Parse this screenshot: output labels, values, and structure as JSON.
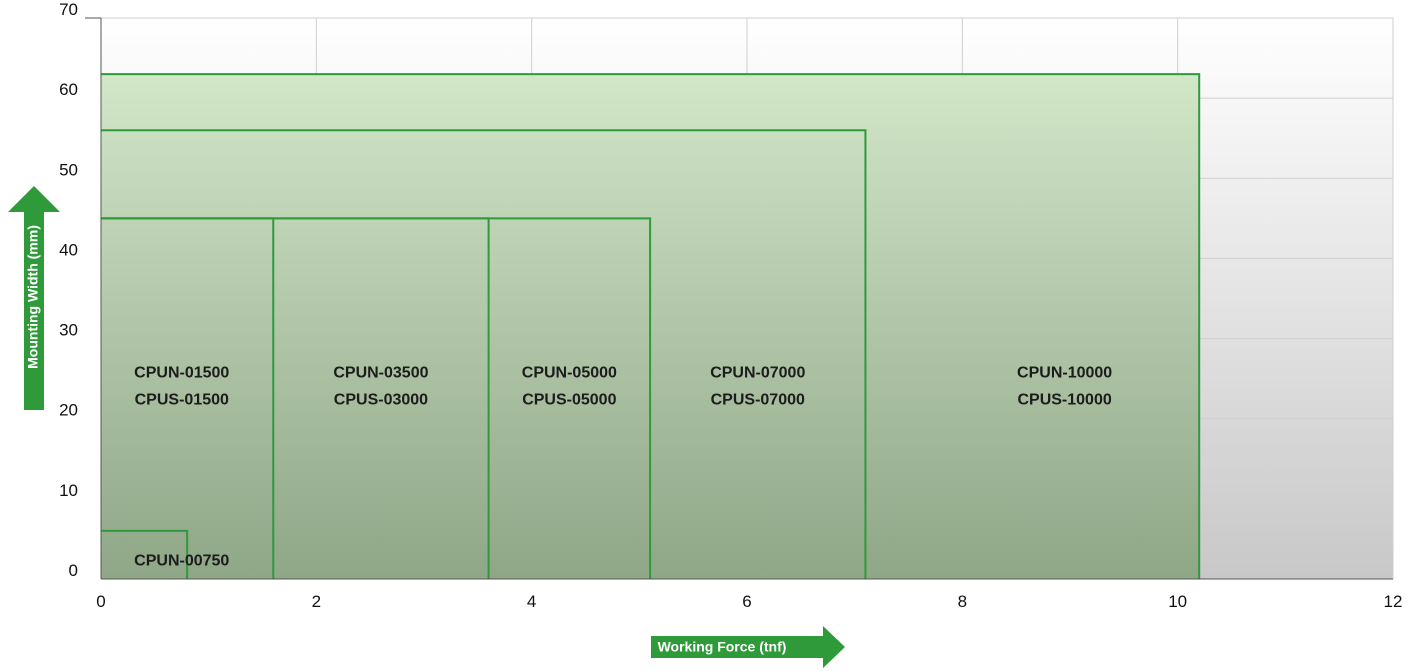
{
  "chart_data": {
    "type": "area",
    "xlabel": "Working Force (tnf)",
    "ylabel": "Mounting Width (mm)",
    "xlim": [
      0,
      12
    ],
    "ylim": [
      0,
      70
    ],
    "x_ticks": [
      "0",
      "2",
      "4",
      "6",
      "8",
      "10",
      "12"
    ],
    "y_ticks": [
      "0",
      "10",
      "20",
      "30",
      "40",
      "50",
      "60",
      "70"
    ],
    "grid": true,
    "colors": {
      "outline": "#2e9a3a",
      "arrow": "#2e9a3a",
      "fill_top": "#d2e6c8",
      "fill_bottom": "#8fa687",
      "plot_bg_top": "#ffffff",
      "plot_bg_bottom": "#c8c8c8",
      "grid": "#cfcfcf"
    },
    "regions": [
      {
        "x_max": 0.8,
        "y_max": 6,
        "label_x": 0.75,
        "label_y": 2.2,
        "labels": [
          "CPUN-00750"
        ]
      },
      {
        "x_max": 1.6,
        "y_max": 45,
        "label_x": 0.75,
        "label_y": 24,
        "labels": [
          "CPUN-01500",
          "CPUS-01500"
        ]
      },
      {
        "x_max": 3.6,
        "y_max": 45,
        "label_x": 2.6,
        "label_y": 24,
        "labels": [
          "CPUN-03500",
          "CPUS-03000"
        ]
      },
      {
        "x_max": 5.1,
        "y_max": 45,
        "label_x": 4.35,
        "label_y": 24,
        "labels": [
          "CPUN-05000",
          "CPUS-05000"
        ]
      },
      {
        "x_max": 7.1,
        "y_max": 56,
        "label_x": 6.1,
        "label_y": 24,
        "labels": [
          "CPUN-07000",
          "CPUS-07000"
        ]
      },
      {
        "x_max": 10.2,
        "y_max": 63,
        "label_x": 8.95,
        "label_y": 24,
        "labels": [
          "CPUN-10000",
          "CPUS-10000"
        ]
      }
    ]
  }
}
